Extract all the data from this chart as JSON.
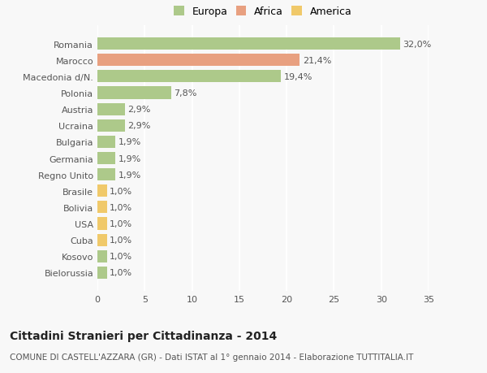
{
  "categories": [
    "Bielorussia",
    "Kosovo",
    "Cuba",
    "USA",
    "Bolivia",
    "Brasile",
    "Regno Unito",
    "Germania",
    "Bulgaria",
    "Ucraina",
    "Austria",
    "Polonia",
    "Macedonia d/N.",
    "Marocco",
    "Romania"
  ],
  "values": [
    1.0,
    1.0,
    1.0,
    1.0,
    1.0,
    1.0,
    1.9,
    1.9,
    1.9,
    2.9,
    2.9,
    7.8,
    19.4,
    21.4,
    32.0
  ],
  "labels": [
    "1,0%",
    "1,0%",
    "1,0%",
    "1,0%",
    "1,0%",
    "1,0%",
    "1,9%",
    "1,9%",
    "1,9%",
    "2,9%",
    "2,9%",
    "7,8%",
    "19,4%",
    "21,4%",
    "32,0%"
  ],
  "colors": [
    "#adc98a",
    "#adc98a",
    "#f0c96a",
    "#f0c96a",
    "#f0c96a",
    "#f0c96a",
    "#adc98a",
    "#adc98a",
    "#adc98a",
    "#adc98a",
    "#adc98a",
    "#adc98a",
    "#adc98a",
    "#e8a080",
    "#adc98a"
  ],
  "legend_labels": [
    "Europa",
    "Africa",
    "America"
  ],
  "legend_colors": [
    "#adc98a",
    "#e8a080",
    "#f0c96a"
  ],
  "title": "Cittadini Stranieri per Cittadinanza - 2014",
  "subtitle": "COMUNE DI CASTELL'AZZARA (GR) - Dati ISTAT al 1° gennaio 2014 - Elaborazione TUTTITALIA.IT",
  "xlim": [
    0,
    35
  ],
  "xticks": [
    0,
    5,
    10,
    15,
    20,
    25,
    30,
    35
  ],
  "background_color": "#f8f8f8",
  "grid_color": "#ffffff",
  "bar_height": 0.75,
  "label_fontsize": 8,
  "title_fontsize": 10,
  "subtitle_fontsize": 7.5,
  "tick_fontsize": 8,
  "legend_fontsize": 9
}
